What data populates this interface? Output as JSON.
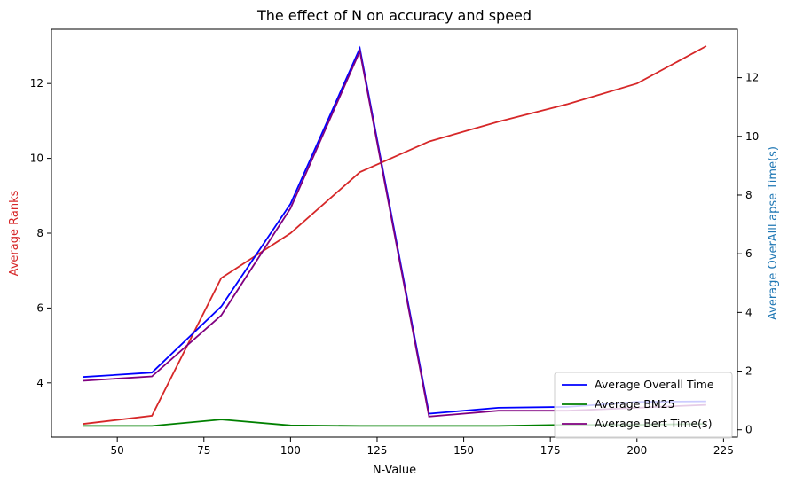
{
  "chart_data": {
    "type": "line",
    "title": "The effect of N on accuracy and speed",
    "xlabel": "N-Value",
    "ylabel_left": "Average Ranks",
    "ylabel_right": "Average OverAllLapse Time(s)",
    "x": [
      40,
      60,
      80,
      100,
      120,
      140,
      160,
      180,
      200,
      220
    ],
    "xlim": [
      31,
      229
    ],
    "xticks": [
      50,
      75,
      100,
      125,
      150,
      175,
      200,
      225
    ],
    "ylim_left": [
      2.55,
      13.45
    ],
    "yticks_left": [
      4,
      6,
      8,
      10,
      12
    ],
    "ylim_right": [
      -0.25,
      13.65
    ],
    "yticks_right": [
      0,
      2,
      4,
      6,
      8,
      10,
      12
    ],
    "left_series": [
      {
        "name": "Average Ranks",
        "color": "#d62728",
        "values": [
          2.9,
          3.12,
          6.8,
          8.0,
          9.63,
          10.45,
          10.98,
          11.45,
          12.0,
          13.0
        ]
      }
    ],
    "right_series": [
      {
        "name": "Average Overall Time",
        "color": "#0000ff",
        "values": [
          1.8,
          1.95,
          4.2,
          7.7,
          13.0,
          0.55,
          0.75,
          0.78,
          0.95,
          0.97
        ]
      },
      {
        "name": "Average BM25",
        "color": "#008000",
        "values": [
          0.13,
          0.13,
          0.35,
          0.15,
          0.13,
          0.13,
          0.13,
          0.17,
          0.17,
          0.2
        ]
      },
      {
        "name": "Average Bert Time(s)",
        "color": "#800080",
        "values": [
          1.67,
          1.82,
          3.9,
          7.55,
          12.9,
          0.45,
          0.65,
          0.65,
          0.75,
          0.85
        ]
      }
    ],
    "legend": {
      "position": "lower-right",
      "entries": [
        "Average Overall Time",
        "Average BM25",
        "Average Bert Time(s)"
      ]
    }
  }
}
